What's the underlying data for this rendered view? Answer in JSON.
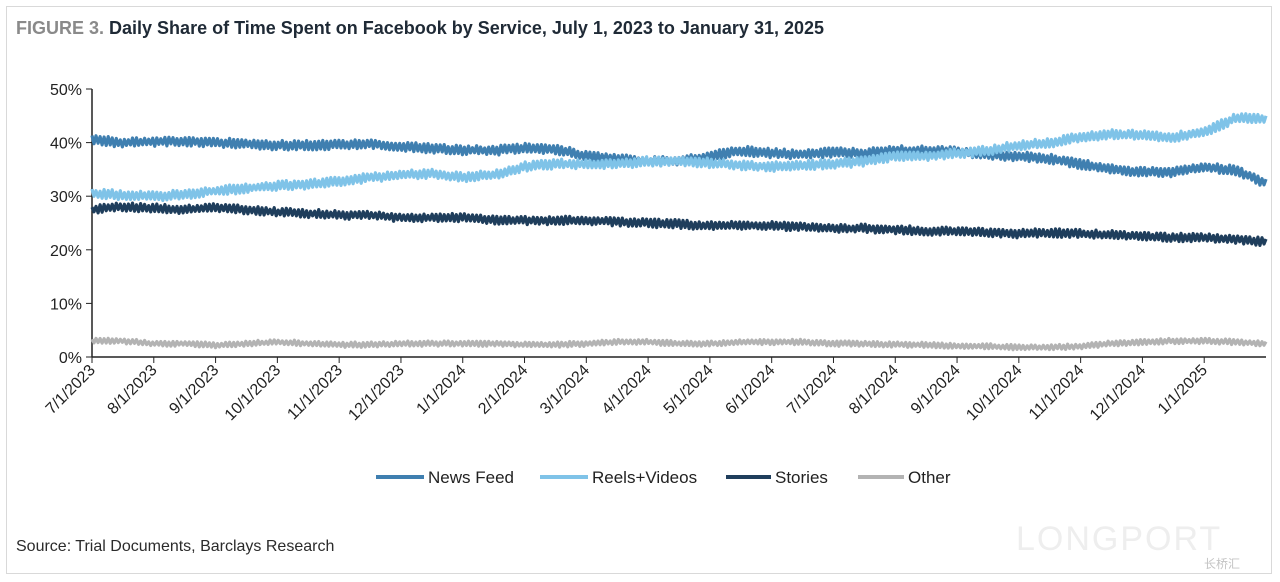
{
  "figure_label": "FIGURE 3.",
  "source": "Source: Trial Documents, Barclays Research",
  "watermark": "LONGPORT",
  "watermark_small": "长桥汇",
  "chart_data": {
    "type": "line",
    "title": "Daily Share of Time Spent on Facebook by Service, July 1, 2023 to January 31, 2025",
    "xlabel": "",
    "ylabel": "",
    "ylim": [
      0,
      50
    ],
    "yticks": [
      "0%",
      "10%",
      "20%",
      "30%",
      "40%",
      "50%"
    ],
    "ytick_values": [
      0,
      10,
      20,
      30,
      40,
      50
    ],
    "xlim": [
      0,
      19.0
    ],
    "xticks": [
      "7/1/2023",
      "8/1/2023",
      "9/1/2023",
      "10/1/2023",
      "11/1/2023",
      "12/1/2023",
      "1/1/2024",
      "2/1/2024",
      "3/1/2024",
      "4/1/2024",
      "5/1/2024",
      "6/1/2024",
      "7/1/2024",
      "8/1/2024",
      "9/1/2024",
      "10/1/2024",
      "11/1/2024",
      "12/1/2024",
      "1/1/2025"
    ],
    "xtick_values": [
      0,
      1,
      2,
      3,
      4,
      5,
      6,
      7,
      8,
      9,
      10,
      11,
      12,
      13,
      14,
      15,
      16,
      17,
      18
    ],
    "x_unit": "months since 7/1/2023",
    "legend_position": "bottom-center",
    "grid": false,
    "series": [
      {
        "name": "News Feed",
        "color": "#3f7fb0",
        "x": [
          0,
          0.5,
          1,
          1.5,
          2,
          2.5,
          3,
          3.5,
          4,
          4.5,
          5,
          5.5,
          6,
          6.5,
          7,
          7.5,
          8,
          8.5,
          9,
          9.5,
          10,
          10.5,
          11,
          11.5,
          12,
          12.5,
          13,
          13.5,
          14,
          14.5,
          15,
          15.5,
          16,
          16.5,
          17,
          17.5,
          18,
          18.5,
          19.0
        ],
        "values": [
          40.5,
          40.0,
          40.2,
          40.3,
          40.0,
          39.8,
          39.5,
          39.5,
          39.6,
          39.8,
          39.2,
          38.9,
          38.6,
          38.5,
          39.0,
          38.8,
          37.5,
          37.0,
          36.5,
          36.5,
          37.5,
          38.5,
          38.0,
          37.8,
          38.2,
          38.0,
          38.5,
          38.5,
          38.3,
          37.8,
          37.4,
          37.0,
          36.0,
          35.0,
          34.5,
          34.5,
          35.5,
          34.8,
          32.5
        ]
      },
      {
        "name": "Reels+Videos",
        "color": "#7fc3e8",
        "x": [
          0,
          0.5,
          1,
          1.5,
          2,
          2.5,
          3,
          3.5,
          4,
          4.5,
          5,
          5.5,
          6,
          6.5,
          7,
          7.5,
          8,
          8.5,
          9,
          9.5,
          10,
          10.5,
          11,
          11.5,
          12,
          12.5,
          13,
          13.5,
          14,
          14.5,
          15,
          15.5,
          16,
          16.5,
          17,
          17.5,
          18,
          18.5,
          19.0
        ],
        "values": [
          30.5,
          30.2,
          30.0,
          30.3,
          31.0,
          31.5,
          32.0,
          32.2,
          32.8,
          33.5,
          34.0,
          34.2,
          33.5,
          34.0,
          35.5,
          36.0,
          36.0,
          36.0,
          36.5,
          36.5,
          36.2,
          35.8,
          35.5,
          35.8,
          36.0,
          36.5,
          37.5,
          37.5,
          38.0,
          38.5,
          39.5,
          40.0,
          41.0,
          41.5,
          41.5,
          41.0,
          42.0,
          44.5,
          44.5
        ]
      },
      {
        "name": "Stories",
        "color": "#1f3e5c",
        "x": [
          0,
          0.5,
          1,
          1.5,
          2,
          2.5,
          3,
          3.5,
          4,
          4.5,
          5,
          5.5,
          6,
          6.5,
          7,
          7.5,
          8,
          8.5,
          9,
          9.5,
          10,
          10.5,
          11,
          11.5,
          12,
          12.5,
          13,
          13.5,
          14,
          14.5,
          15,
          15.5,
          16,
          16.5,
          17,
          17.5,
          18,
          18.5,
          19.0
        ],
        "values": [
          27.5,
          28.0,
          27.8,
          27.5,
          27.8,
          27.5,
          27.0,
          26.8,
          26.5,
          26.5,
          26.0,
          26.0,
          26.0,
          25.5,
          25.5,
          25.5,
          25.5,
          25.2,
          25.0,
          24.8,
          24.5,
          24.5,
          24.5,
          24.3,
          24.0,
          24.0,
          23.8,
          23.5,
          23.5,
          23.2,
          23.0,
          23.2,
          23.0,
          22.8,
          22.5,
          22.3,
          22.3,
          22.0,
          21.5
        ]
      },
      {
        "name": "Other",
        "color": "#b3b3b3",
        "x": [
          0,
          0.5,
          1,
          1.5,
          2,
          2.5,
          3,
          3.5,
          4,
          4.5,
          5,
          5.5,
          6,
          6.5,
          7,
          7.5,
          8,
          8.5,
          9,
          9.5,
          10,
          10.5,
          11,
          11.5,
          12,
          12.5,
          13,
          13.5,
          14,
          14.5,
          15,
          15.5,
          16,
          16.5,
          17,
          17.5,
          18,
          18.5,
          19.0
        ],
        "values": [
          3.0,
          3.0,
          2.5,
          2.5,
          2.2,
          2.5,
          2.8,
          2.5,
          2.3,
          2.3,
          2.5,
          2.5,
          2.5,
          2.5,
          2.3,
          2.3,
          2.5,
          2.8,
          2.8,
          2.5,
          2.5,
          2.8,
          2.8,
          2.8,
          2.5,
          2.5,
          2.3,
          2.3,
          2.0,
          2.0,
          1.8,
          1.8,
          2.0,
          2.5,
          2.8,
          3.0,
          3.0,
          2.8,
          2.5
        ]
      }
    ]
  }
}
